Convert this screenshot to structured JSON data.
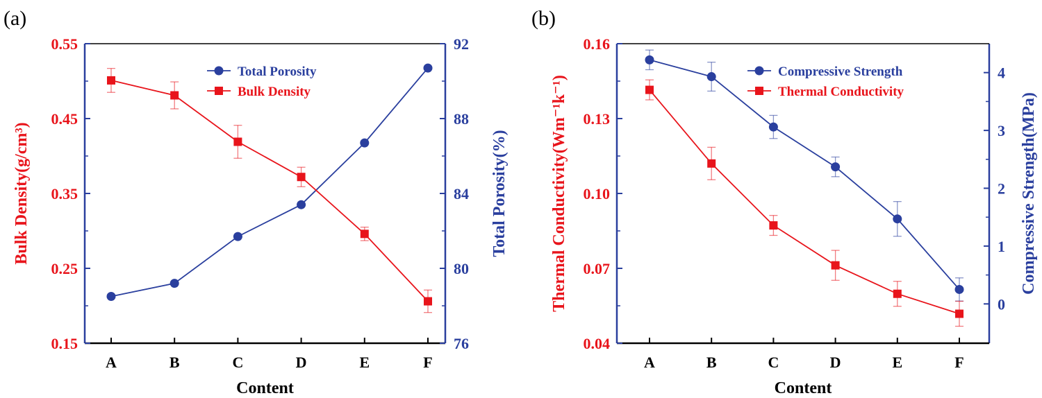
{
  "colors": {
    "left": "#e8141b",
    "right": "#2a3f9e",
    "axis": "#2a3f9e"
  },
  "chart_data": [
    {
      "panel_label": "(a)",
      "type": "line",
      "categories": [
        "A",
        "B",
        "C",
        "D",
        "E",
        "F"
      ],
      "xlabel": "Content",
      "y_left": {
        "label": "Bulk Density(g/cm³)",
        "ticks": [
          "0.15",
          "0.25",
          "0.35",
          "0.45",
          "0.55"
        ],
        "lim": [
          0.15,
          0.55
        ]
      },
      "y_right": {
        "label": "Total Porosity(%)",
        "ticks": [
          "76",
          "80",
          "84",
          "88",
          "92"
        ],
        "lim": [
          76,
          92
        ]
      },
      "legend_position": "top-right",
      "series": [
        {
          "name": "Total Porosity",
          "axis": "right",
          "marker": "circle",
          "color": "#2a3f9e",
          "values": [
            78.5,
            79.2,
            81.7,
            83.4,
            86.7,
            90.7
          ],
          "errors": [
            0,
            0,
            0,
            0,
            0,
            0
          ]
        },
        {
          "name": "Bulk Density",
          "axis": "left",
          "marker": "square",
          "color": "#e8141b",
          "values": [
            0.501,
            0.481,
            0.419,
            0.372,
            0.296,
            0.206
          ],
          "errors": [
            0.016,
            0.018,
            0.022,
            0.013,
            0.009,
            0.015
          ]
        }
      ]
    },
    {
      "panel_label": "(b)",
      "type": "line",
      "categories": [
        "A",
        "B",
        "C",
        "D",
        "E",
        "F"
      ],
      "xlabel": "Content",
      "y_left": {
        "label": "Thermal Conductivity(Wm⁻¹k⁻¹)",
        "ticks": [
          "0.04",
          "0.07",
          "0.10",
          "0.13",
          "0.16"
        ],
        "lim": [
          0.04,
          0.16
        ]
      },
      "y_right": {
        "label": "Compressive Strength(MPa)",
        "ticks": [
          "0",
          "1",
          "2",
          "3",
          "4"
        ],
        "lim": [
          -0.68,
          4.5
        ]
      },
      "legend_position": "top-right",
      "series": [
        {
          "name": "Compressive Strength",
          "axis": "right",
          "marker": "circle",
          "color": "#2a3f9e",
          "values": [
            4.22,
            3.93,
            3.06,
            2.37,
            1.47,
            0.25
          ],
          "errors": [
            0.17,
            0.25,
            0.2,
            0.17,
            0.3,
            0.2
          ]
        },
        {
          "name": "Thermal Conductivity",
          "axis": "left",
          "marker": "square",
          "color": "#e8141b",
          "values": [
            0.1415,
            0.112,
            0.0872,
            0.0712,
            0.0598,
            0.0518
          ],
          "errors": [
            0.004,
            0.0065,
            0.004,
            0.006,
            0.005,
            0.005
          ]
        }
      ]
    }
  ]
}
